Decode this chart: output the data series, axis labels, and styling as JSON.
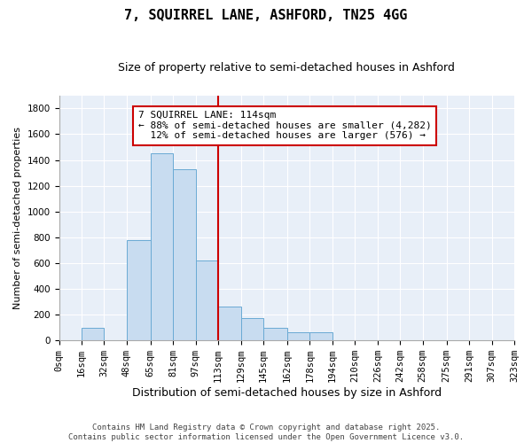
{
  "title": "7, SQUIRREL LANE, ASHFORD, TN25 4GG",
  "subtitle": "Size of property relative to semi-detached houses in Ashford",
  "xlabel": "Distribution of semi-detached houses by size in Ashford",
  "ylabel": "Number of semi-detached properties",
  "property_label": "7 SQUIRREL LANE: 114sqm",
  "pct_smaller": 88,
  "count_smaller": 4282,
  "pct_larger": 12,
  "count_larger": 576,
  "bar_color": "#c8dcf0",
  "bar_edge_color": "#6aaad4",
  "vline_color": "#cc0000",
  "annotation_box_edge": "#cc0000",
  "bins": [
    0,
    16,
    32,
    48,
    65,
    81,
    97,
    113,
    129,
    145,
    162,
    178,
    194,
    210,
    226,
    242,
    258,
    275,
    291,
    307,
    323
  ],
  "bin_labels": [
    "0sqm",
    "16sqm",
    "32sqm",
    "48sqm",
    "65sqm",
    "81sqm",
    "97sqm",
    "113sqm",
    "129sqm",
    "145sqm",
    "162sqm",
    "178sqm",
    "194sqm",
    "210sqm",
    "226sqm",
    "242sqm",
    "258sqm",
    "275sqm",
    "291sqm",
    "307sqm",
    "323sqm"
  ],
  "counts": [
    0,
    95,
    0,
    775,
    1450,
    1330,
    620,
    265,
    170,
    95,
    60,
    65,
    0,
    0,
    0,
    0,
    0,
    0,
    0,
    0
  ],
  "ylim": [
    0,
    1900
  ],
  "yticks": [
    0,
    200,
    400,
    600,
    800,
    1000,
    1200,
    1400,
    1600,
    1800
  ],
  "background_color": "#e8eff8",
  "footer": "Contains HM Land Registry data © Crown copyright and database right 2025.\nContains public sector information licensed under the Open Government Licence v3.0.",
  "title_fontsize": 11,
  "subtitle_fontsize": 9,
  "xlabel_fontsize": 9,
  "ylabel_fontsize": 8,
  "tick_fontsize": 7.5,
  "annotation_fontsize": 8,
  "footer_fontsize": 6.5
}
